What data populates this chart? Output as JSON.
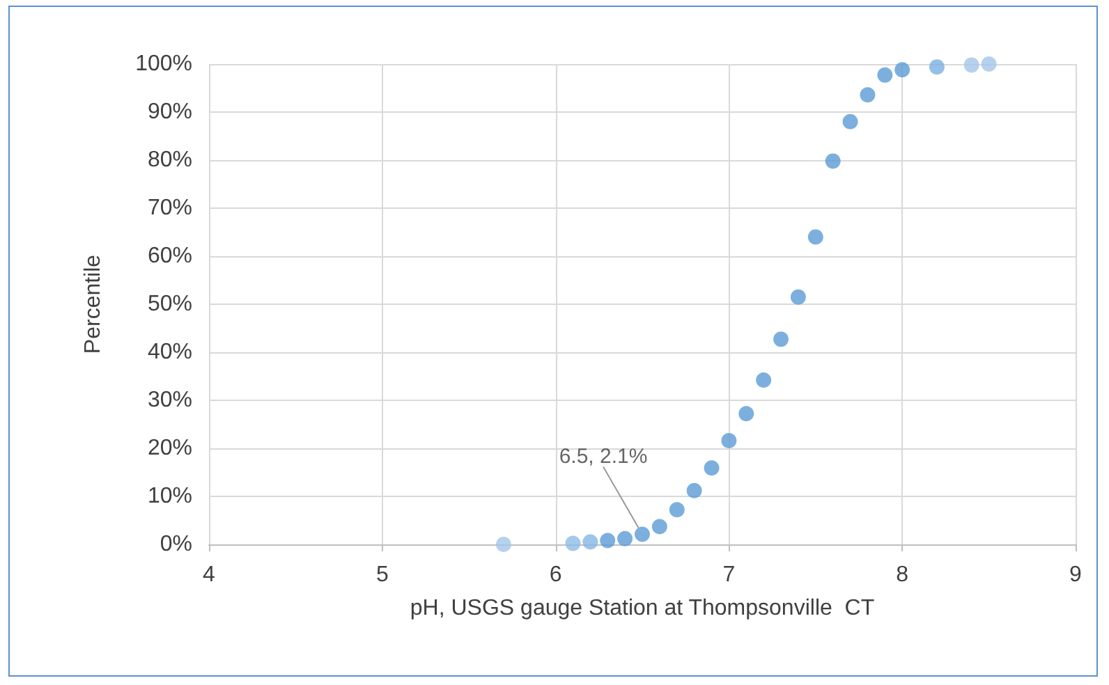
{
  "chart_data": {
    "type": "scatter",
    "xlabel": "pH, USGS gauge Station at Thompsonville  CT",
    "ylabel": "Percentile",
    "x": [
      5.7,
      6.1,
      6.2,
      6.3,
      6.4,
      6.5,
      6.6,
      6.7,
      6.8,
      6.9,
      7.0,
      7.1,
      7.2,
      7.3,
      7.4,
      7.5,
      7.6,
      7.7,
      7.8,
      7.9,
      8.0,
      8.2,
      8.4,
      8.5
    ],
    "values": [
      0,
      0.2,
      0.5,
      0.8,
      1.2,
      2.1,
      3.7,
      7.2,
      11.2,
      15.9,
      21.6,
      27.2,
      34.2,
      42.7,
      51.5,
      64.0,
      79.8,
      88.0,
      93.6,
      97.7,
      98.8,
      99.4,
      99.8,
      100
    ],
    "colors": [
      "#a4c6e8",
      "#8ebbe6",
      "#85b5e3",
      "#5b9bd5",
      "#5b9bd5",
      "#5b9bd5",
      "#5b9bd5",
      "#5b9bd5",
      "#5b9bd5",
      "#5b9bd5",
      "#5b9bd5",
      "#5b9bd5",
      "#5b9bd5",
      "#5b9bd5",
      "#5b9bd5",
      "#5b9bd5",
      "#5b9bd5",
      "#5b9bd5",
      "#5b9bd5",
      "#5b9bd5",
      "#5b9bd5",
      "#7aafe0",
      "#a4c6e8",
      "#a4c6e8"
    ],
    "annotations": [
      {
        "text": "6.5, 2.1%",
        "x": 6.5,
        "y": 2.1
      }
    ],
    "xlim": [
      4,
      9
    ],
    "xticks": [
      4,
      5,
      6,
      7,
      8,
      9
    ],
    "ylim": [
      0,
      100
    ],
    "yticks": [
      {
        "value": 0,
        "label": "0%"
      },
      {
        "value": 10,
        "label": "10%"
      },
      {
        "value": 20,
        "label": "20%"
      },
      {
        "value": 30,
        "label": "30%"
      },
      {
        "value": 40,
        "label": "40%"
      },
      {
        "value": 50,
        "label": "50%"
      },
      {
        "value": 60,
        "label": "60%"
      },
      {
        "value": 70,
        "label": "70%"
      },
      {
        "value": 80,
        "label": "80%"
      },
      {
        "value": 90,
        "label": "90%"
      },
      {
        "value": 100,
        "label": "100%"
      }
    ],
    "grid": true,
    "marker": "circle"
  }
}
